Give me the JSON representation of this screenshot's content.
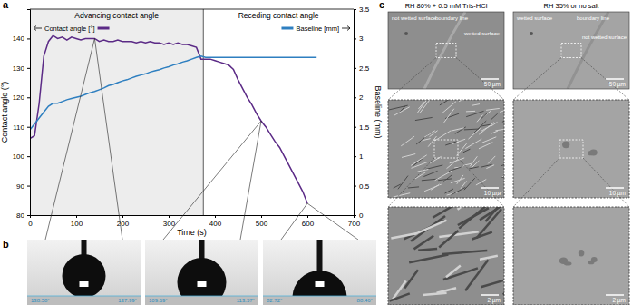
{
  "chart_data": {
    "type": "line",
    "x": [
      0,
      10,
      20,
      30,
      40,
      50,
      60,
      70,
      80,
      90,
      100,
      110,
      120,
      130,
      140,
      150,
      160,
      170,
      180,
      190,
      200,
      210,
      220,
      230,
      240,
      250,
      260,
      270,
      280,
      290,
      300,
      310,
      320,
      330,
      340,
      350,
      360,
      370,
      380,
      390,
      400,
      410,
      420,
      430,
      440,
      450,
      460,
      470,
      480,
      490,
      500,
      510,
      520,
      530,
      540,
      550,
      560,
      570,
      580,
      590,
      600,
      610,
      620
    ],
    "series": [
      {
        "name": "Contact angle [°]",
        "color": "#5b2a86",
        "values": [
          106,
          107,
          118,
          134,
          139,
          141,
          140,
          140.5,
          139.5,
          140.5,
          140,
          139.5,
          140,
          140,
          140,
          139,
          139.5,
          139,
          139,
          139.5,
          139,
          139,
          139,
          138.5,
          139,
          138.5,
          139,
          138.5,
          138.5,
          138,
          138.5,
          138,
          138.5,
          138,
          138,
          137.5,
          137,
          133,
          133,
          133,
          132.5,
          132,
          131.5,
          131,
          129.5,
          126,
          123,
          120,
          117.5,
          114.5,
          112,
          110,
          107.5,
          105,
          103,
          100,
          97,
          94,
          91,
          88,
          84,
          null,
          null
        ]
      },
      {
        "name": "Baseline [mm]",
        "color": "#2e7fc0",
        "axis": "y2",
        "values": [
          1.45,
          1.55,
          1.65,
          1.75,
          1.85,
          1.9,
          1.9,
          1.93,
          1.96,
          1.98,
          2.0,
          2.02,
          2.05,
          2.08,
          2.1,
          2.13,
          2.16,
          2.2,
          2.22,
          2.25,
          2.28,
          2.3,
          2.33,
          2.36,
          2.38,
          2.4,
          2.43,
          2.45,
          2.47,
          2.5,
          2.52,
          2.55,
          2.57,
          2.6,
          2.62,
          2.65,
          2.68,
          2.7,
          2.68,
          2.68,
          2.68,
          2.68,
          2.68,
          2.68,
          2.68,
          2.68,
          2.68,
          2.68,
          2.68,
          2.68,
          2.68,
          2.68,
          2.68,
          2.68,
          2.68,
          2.68,
          2.68,
          2.68,
          2.68,
          2.68,
          2.68,
          2.68,
          2.68
        ]
      }
    ],
    "xlabel": "Time (s)",
    "ylabel": "Contact angle (°)",
    "y2label": "Baseline (mm)",
    "xlim": [
      0,
      700
    ],
    "xticks": [
      0,
      100,
      200,
      300,
      400,
      500,
      600,
      700
    ],
    "ylim": [
      80,
      150
    ],
    "yticks": [
      80,
      90,
      100,
      110,
      120,
      130,
      140
    ],
    "y2lim": [
      0,
      3.5
    ],
    "y2ticks": [
      0,
      0.5,
      1,
      1.5,
      2,
      2.5,
      3,
      3.5
    ],
    "annotations": [
      {
        "text": "Advancing contact angle",
        "x_range": [
          0,
          375
        ]
      },
      {
        "text": "Receding contact angle",
        "x_range": [
          375,
          700
        ]
      }
    ]
  },
  "figure": {
    "panel_labels": [
      "a",
      "b",
      "c"
    ],
    "panel_b": [
      {
        "left": "138.58°",
        "right": "137.99°"
      },
      {
        "left": "109.69°",
        "right": "113.57°"
      },
      {
        "left": "82.72°",
        "right": "88.46°"
      }
    ],
    "panel_c": [
      {
        "title": "RH 80% + 0.5 mM Tris-HCl",
        "images": [
          {
            "labels": [
              "not wetted surface",
              "boundary line",
              "wetted surface"
            ],
            "scale": "50 µm"
          },
          {
            "scale": "10 µm"
          },
          {
            "scale": "2 µm"
          }
        ]
      },
      {
        "title": "RH 35% or no salt",
        "images": [
          {
            "labels": [
              "wetted surface",
              "boundary line",
              "not wetted surface"
            ],
            "scale": "50 µm"
          },
          {
            "scale": "10 µm"
          },
          {
            "scale": "2 µm"
          }
        ]
      }
    ]
  }
}
